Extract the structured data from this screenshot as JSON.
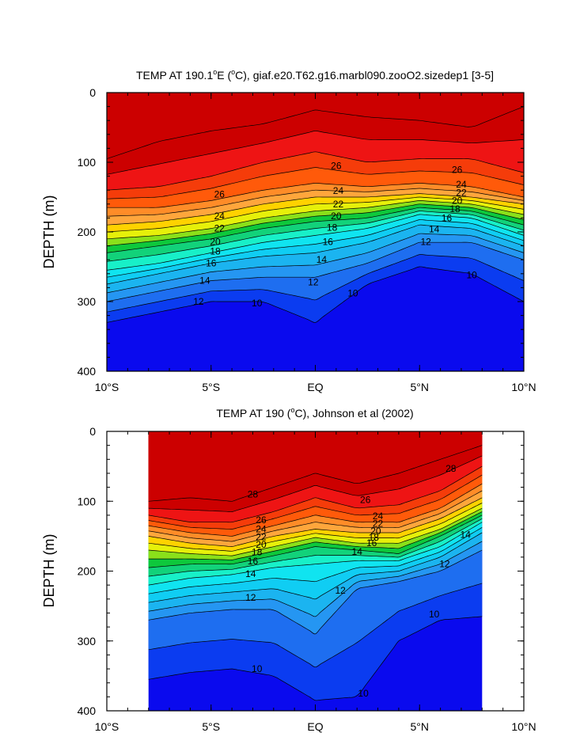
{
  "colors": {
    "scale": [
      "#0a0aee",
      "#0b3cf0",
      "#1e6ef0",
      "#2596f2",
      "#1bb4f0",
      "#10cdf3",
      "#10e4f0",
      "#18f0c8",
      "#12d27a",
      "#0ec83c",
      "#8ae01a",
      "#e6f00a",
      "#ffd200",
      "#ffa63c",
      "#ff8c28",
      "#ff5a0a",
      "#f53c0a",
      "#ee1414",
      "#cc0000"
    ]
  },
  "chart_data": [
    {
      "type": "heatmap",
      "title": "TEMP AT 190.1°E (°C), giaf.e20.T62.g16.marbl090.zooO2.sizedep1 [3-5]",
      "title_main": "TEMP AT 190.1",
      "title_deg": "o",
      "title_rest": "E (",
      "title_deg2": "o",
      "title_tail": "C), giaf.e20.T62.g16.marbl090.zooO2.sizedep1 [3-5]",
      "ylabel": "DEPTH (m)",
      "xlabel": "",
      "xlim": [
        -10,
        10
      ],
      "ylim": [
        400,
        0
      ],
      "x_ticks": [
        -10,
        -5,
        0,
        5,
        10
      ],
      "x_tick_labels": [
        "10°S",
        "5°S",
        "EQ",
        "5°N",
        "10°N"
      ],
      "y_ticks": [
        0,
        100,
        200,
        300,
        400
      ],
      "x_data_range": [
        -10,
        10
      ],
      "x": [
        -10,
        -7.5,
        -5,
        -2.5,
        0,
        2.5,
        5,
        7.5,
        10
      ],
      "isotherms": [
        {
          "value": 28,
          "depths": [
            95,
            70,
            55,
            45,
            25,
            35,
            40,
            50,
            20
          ]
        },
        {
          "value": 26,
          "depths": [
            140,
            135,
            120,
            100,
            85,
            100,
            95,
            95,
            115
          ]
        },
        {
          "value": 24,
          "depths": [
            165,
            165,
            155,
            140,
            130,
            135,
            130,
            135,
            150
          ]
        },
        {
          "value": 22,
          "depths": [
            190,
            185,
            175,
            160,
            150,
            150,
            145,
            150,
            160
          ]
        },
        {
          "value": 20,
          "depths": [
            210,
            205,
            195,
            180,
            170,
            165,
            155,
            160,
            175
          ]
        },
        {
          "value": 18,
          "depths": [
            230,
            220,
            210,
            195,
            185,
            180,
            165,
            170,
            190
          ]
        },
        {
          "value": 16,
          "depths": [
            255,
            245,
            230,
            215,
            205,
            195,
            175,
            180,
            205
          ]
        },
        {
          "value": 14,
          "depths": [
            275,
            260,
            245,
            235,
            230,
            215,
            190,
            195,
            220
          ]
        },
        {
          "value": 12,
          "depths": [
            300,
            285,
            270,
            265,
            265,
            245,
            215,
            215,
            240
          ]
        },
        {
          "value": 10,
          "depths": [
            330,
            315,
            300,
            300,
            330,
            275,
            250,
            260,
            300
          ]
        }
      ],
      "contour_labels": [
        {
          "text": "26",
          "x": -4.6,
          "y": 146
        },
        {
          "text": "24",
          "x": -4.6,
          "y": 177
        },
        {
          "text": "22",
          "x": -4.6,
          "y": 195
        },
        {
          "text": "20",
          "x": -4.8,
          "y": 214
        },
        {
          "text": "18",
          "x": -4.8,
          "y": 228
        },
        {
          "text": "16",
          "x": -5.0,
          "y": 245
        },
        {
          "text": "14",
          "x": -5.3,
          "y": 270
        },
        {
          "text": "12",
          "x": -5.6,
          "y": 300
        },
        {
          "text": "10",
          "x": -2.8,
          "y": 302
        },
        {
          "text": "26",
          "x": 1.0,
          "y": 105
        },
        {
          "text": "24",
          "x": 1.1,
          "y": 141
        },
        {
          "text": "22",
          "x": 1.1,
          "y": 160
        },
        {
          "text": "20",
          "x": 1.0,
          "y": 177
        },
        {
          "text": "18",
          "x": 0.8,
          "y": 194
        },
        {
          "text": "16",
          "x": 0.6,
          "y": 214
        },
        {
          "text": "14",
          "x": 0.3,
          "y": 240
        },
        {
          "text": "12",
          "x": -0.1,
          "y": 272
        },
        {
          "text": "10",
          "x": 1.8,
          "y": 288
        },
        {
          "text": "26",
          "x": 6.8,
          "y": 111
        },
        {
          "text": "24",
          "x": 7.0,
          "y": 132
        },
        {
          "text": "22",
          "x": 7.0,
          "y": 144
        },
        {
          "text": "20",
          "x": 6.8,
          "y": 155
        },
        {
          "text": "18",
          "x": 6.7,
          "y": 167
        },
        {
          "text": "16",
          "x": 6.3,
          "y": 180
        },
        {
          "text": "14",
          "x": 5.7,
          "y": 196
        },
        {
          "text": "12",
          "x": 5.3,
          "y": 214
        },
        {
          "text": "10",
          "x": 7.5,
          "y": 262
        }
      ]
    },
    {
      "type": "heatmap",
      "title": "TEMP AT 190 (°C), Johnson et al (2002)",
      "title_main": "TEMP AT 190 (",
      "title_deg": "o",
      "title_tail": "C), Johnson et al (2002)",
      "ylabel": "DEPTH (m)",
      "xlabel": "",
      "xlim": [
        -10,
        10
      ],
      "ylim": [
        400,
        0
      ],
      "x_ticks": [
        -10,
        -5,
        0,
        5,
        10
      ],
      "x_tick_labels": [
        "10°S",
        "5°S",
        "EQ",
        "5°N",
        "10°N"
      ],
      "y_ticks": [
        0,
        100,
        200,
        300,
        400
      ],
      "x_data_range": [
        -8,
        8
      ],
      "x": [
        -8,
        -6,
        -4,
        -2,
        0,
        2,
        4,
        6,
        8
      ],
      "isotherms": [
        {
          "value": 28,
          "depths": [
            100,
            95,
            100,
            80,
            60,
            75,
            60,
            40,
            20
          ]
        },
        {
          "value": 26,
          "depths": [
            120,
            130,
            130,
            115,
            95,
            110,
            105,
            85,
            50
          ]
        },
        {
          "value": 24,
          "depths": [
            135,
            145,
            150,
            135,
            120,
            130,
            130,
            110,
            75
          ]
        },
        {
          "value": 22,
          "depths": [
            150,
            160,
            165,
            150,
            140,
            145,
            145,
            125,
            95
          ]
        },
        {
          "value": 20,
          "depths": [
            170,
            175,
            178,
            165,
            152,
            160,
            160,
            140,
            110
          ]
        },
        {
          "value": 18,
          "depths": [
            195,
            190,
            190,
            178,
            165,
            170,
            175,
            150,
            120
          ]
        },
        {
          "value": 16,
          "depths": [
            220,
            210,
            205,
            195,
            190,
            185,
            185,
            165,
            130
          ]
        },
        {
          "value": 14,
          "depths": [
            245,
            235,
            230,
            225,
            240,
            205,
            200,
            180,
            145
          ]
        },
        {
          "value": 12,
          "depths": [
            270,
            260,
            255,
            255,
            290,
            225,
            215,
            200,
            170
          ]
        },
        {
          "value": 10,
          "depths": [
            355,
            345,
            340,
            350,
            385,
            380,
            300,
            270,
            265
          ]
        }
      ],
      "contour_labels": [
        {
          "text": "28",
          "x": -3.0,
          "y": 90
        },
        {
          "text": "26",
          "x": -2.6,
          "y": 127
        },
        {
          "text": "24",
          "x": -2.6,
          "y": 140
        },
        {
          "text": "22",
          "x": -2.6,
          "y": 151
        },
        {
          "text": "20",
          "x": -2.6,
          "y": 162
        },
        {
          "text": "18",
          "x": -2.8,
          "y": 173
        },
        {
          "text": "16",
          "x": -3.0,
          "y": 186
        },
        {
          "text": "14",
          "x": -3.1,
          "y": 204
        },
        {
          "text": "12",
          "x": -3.1,
          "y": 238
        },
        {
          "text": "10",
          "x": -2.8,
          "y": 340
        },
        {
          "text": "26",
          "x": 2.4,
          "y": 98
        },
        {
          "text": "24",
          "x": 3.0,
          "y": 121
        },
        {
          "text": "22",
          "x": 3.0,
          "y": 132
        },
        {
          "text": "20",
          "x": 2.9,
          "y": 143
        },
        {
          "text": "18",
          "x": 2.8,
          "y": 152
        },
        {
          "text": "16",
          "x": 2.7,
          "y": 160
        },
        {
          "text": "14",
          "x": 2.0,
          "y": 172
        },
        {
          "text": "12",
          "x": 1.2,
          "y": 228
        },
        {
          "text": "10",
          "x": 2.3,
          "y": 375
        },
        {
          "text": "28",
          "x": 6.5,
          "y": 53
        },
        {
          "text": "14",
          "x": 7.2,
          "y": 148
        },
        {
          "text": "12",
          "x": 6.2,
          "y": 190
        },
        {
          "text": "10",
          "x": 5.7,
          "y": 262
        }
      ]
    }
  ]
}
